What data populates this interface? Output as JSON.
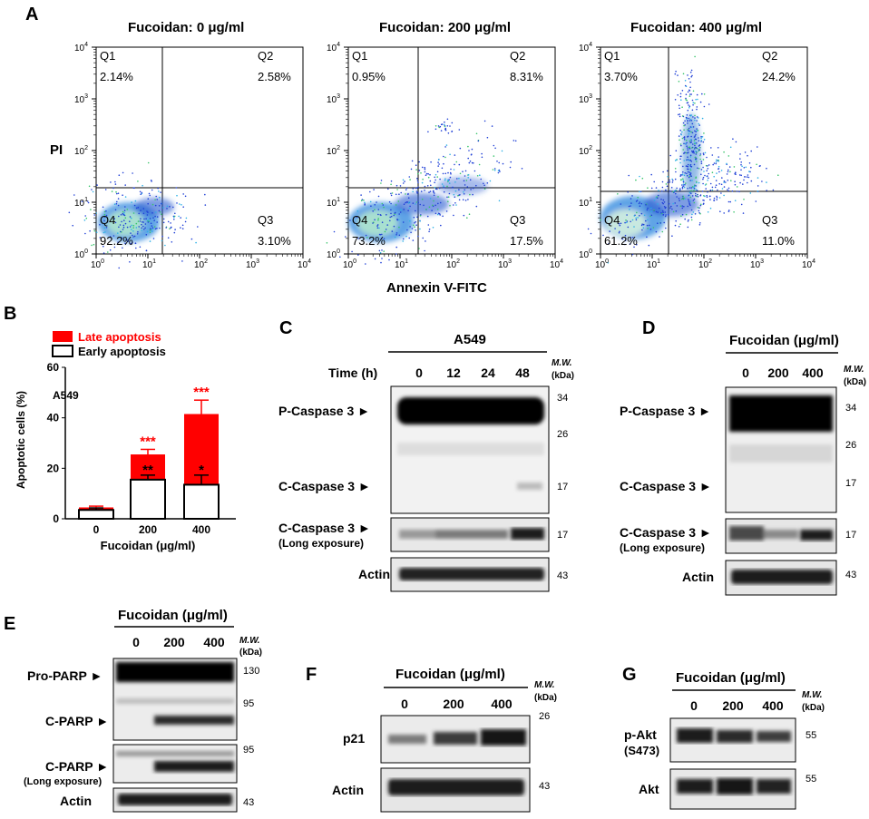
{
  "panel_letters": {
    "a": "A",
    "b": "B",
    "c": "C",
    "d": "D",
    "e": "E",
    "f": "F",
    "g": "G"
  },
  "flow": {
    "ylabel": "PI",
    "xlabel": "Annexin V-FITC",
    "decades": [
      "10",
      "10",
      "10",
      "10",
      "10"
    ],
    "exps": [
      "0",
      "1",
      "2",
      "3",
      "4"
    ],
    "plots": [
      {
        "title": "Fucoidan: 0 μg/ml",
        "q1": "Q1",
        "q1v": "2.14%",
        "q2": "Q2",
        "q2v": "2.58%",
        "q3": "Q3",
        "q3v": "3.10%",
        "q4": "Q4",
        "q4v": "92.2%"
      },
      {
        "title": "Fucoidan: 200 μg/ml",
        "q1": "Q1",
        "q1v": "0.95%",
        "q2": "Q2",
        "q2v": "8.31%",
        "q3": "Q3",
        "q3v": "17.5%",
        "q4": "Q4",
        "q4v": "73.2%"
      },
      {
        "title": "Fucoidan: 400 μg/ml",
        "q1": "Q1",
        "q1v": "3.70%",
        "q2": "Q2",
        "q2v": "24.2%",
        "q3": "Q3",
        "q3v": "11.0%",
        "q4": "Q4",
        "q4v": "61.2%"
      }
    ]
  },
  "chart_data": {
    "type": "bar",
    "stacked": true,
    "categories": [
      "0",
      "200",
      "400"
    ],
    "series": [
      {
        "name": "Early apoptosis",
        "values": [
          3.5,
          15.5,
          13.5
        ],
        "errors": [
          0.8,
          1.8,
          3.8
        ],
        "color": "#ffffff"
      },
      {
        "name": "Late apoptosis",
        "values": [
          1.0,
          10.0,
          28.0
        ],
        "errors": [
          0.5,
          2.0,
          5.5
        ],
        "color": "#ff0000"
      }
    ],
    "sig_late": [
      "",
      "***",
      "***"
    ],
    "sig_early": [
      "",
      "**",
      "*"
    ],
    "title": "",
    "inset_label": "A549",
    "xlabel": "Fucoidan (μg/ml)",
    "ylabel": "Apoptotic cells (%)",
    "ylim": [
      0,
      60
    ],
    "yticks": [
      "0",
      "20",
      "40",
      "60"
    ],
    "legend_placement": "top"
  },
  "blotC": {
    "cell": "A549",
    "time": "Time (h)",
    "lanes": [
      "0",
      "12",
      "24",
      "48"
    ],
    "mw": "M.W.",
    "kda": "(kDa)",
    "rows": [
      "P-Caspase 3 ►",
      "C-Caspase 3 ►",
      "C-Caspase 3 ►",
      "(Long exposure)",
      "Actin"
    ],
    "markers": [
      "34",
      "26",
      "17",
      "17",
      "43"
    ]
  },
  "blotD": {
    "header": "Fucoidan (μg/ml)",
    "lanes": [
      "0",
      "200",
      "400"
    ],
    "mw": "M.W.",
    "kda": "(kDa)",
    "rows": [
      "P-Caspase 3 ►",
      "C-Caspase 3 ►",
      "C-Caspase 3 ►",
      "(Long exposure)",
      "Actin"
    ],
    "markers": [
      "34",
      "26",
      "17",
      "17",
      "43"
    ]
  },
  "blotE": {
    "header": "Fucoidan (μg/ml)",
    "lanes": [
      "0",
      "200",
      "400"
    ],
    "mw": "M.W.",
    "kda": "(kDa)",
    "rows": [
      "Pro-PARP ►",
      "C-PARP ►",
      "C-PARP ►",
      "(Long exposure)",
      "Actin"
    ],
    "markers": [
      "130",
      "95",
      "95",
      "43"
    ]
  },
  "blotF": {
    "header": "Fucoidan (μg/ml)",
    "lanes": [
      "0",
      "200",
      "400"
    ],
    "mw": "M.W.",
    "kda": "(kDa)",
    "rows": [
      "p21",
      "Actin"
    ],
    "markers": [
      "26",
      "43"
    ]
  },
  "blotG": {
    "header": "Fucoidan (μg/ml)",
    "lanes": [
      "0",
      "200",
      "400"
    ],
    "mw": "M.W.",
    "kda": "(kDa)",
    "rows": [
      "p-Akt",
      "(S473)",
      "Akt"
    ],
    "markers": [
      "55",
      "55"
    ]
  }
}
